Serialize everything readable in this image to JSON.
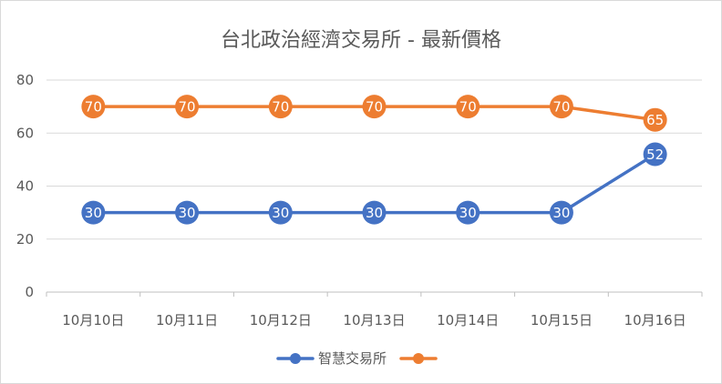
{
  "chart_data": {
    "type": "line",
    "title": "台北政治經濟交易所 - 最新價格",
    "categories": [
      "10月10日",
      "10月11日",
      "10月12日",
      "10月13日",
      "10月14日",
      "10月15日",
      "10月16日"
    ],
    "series": [
      {
        "name": "智慧交易所",
        "color": "#4472c4",
        "values": [
          30,
          30,
          30,
          30,
          30,
          30,
          52
        ]
      },
      {
        "name": "",
        "color": "#ed7d31",
        "values": [
          70,
          70,
          70,
          70,
          70,
          70,
          65
        ]
      }
    ],
    "yticks": [
      "0",
      "20",
      "40",
      "60",
      "80"
    ],
    "ylim": [
      0,
      80
    ],
    "grid": true,
    "legend": "bottom",
    "data_labels": true
  }
}
